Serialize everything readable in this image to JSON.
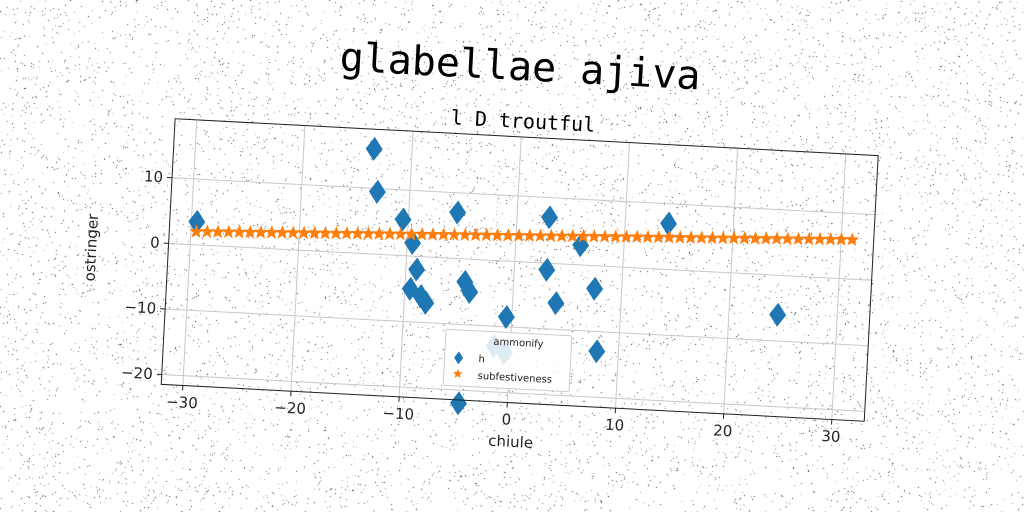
{
  "chart_data": {
    "type": "scatter",
    "title": "glabellae ajiva",
    "subtitle": "l D troutful",
    "xlabel": "chiule",
    "ylabel": "ostringer",
    "xlim": [
      -32,
      33
    ],
    "ylim": [
      -21.5,
      19
    ],
    "xticks": [
      -30,
      -20,
      -10,
      0,
      10,
      20,
      30
    ],
    "yticks": [
      -20,
      -10,
      0,
      10
    ],
    "xtick_labels": [
      "−30",
      "−20",
      "−10",
      "0",
      "10",
      "20",
      "30"
    ],
    "ytick_labels": [
      "−20",
      "−10",
      "0",
      "10"
    ],
    "grid": true,
    "rotation_deg": 3,
    "legend": {
      "placement": "lower-center",
      "title": "ammonify",
      "entries": [
        {
          "label": "h",
          "marker": "diamond",
          "color": "#1f77b4"
        },
        {
          "label": "subfestiveness",
          "marker": "star",
          "color": "#ff7f0e"
        }
      ]
    },
    "series": [
      {
        "name": "h",
        "marker": "diamond",
        "color": "#1f77b4",
        "points": [
          {
            "x": -29.5,
            "y": 3.5
          },
          {
            "x": -13.5,
            "y": 16
          },
          {
            "x": -13,
            "y": 9.5
          },
          {
            "x": -10.5,
            "y": 5.5
          },
          {
            "x": -9.5,
            "y": 2
          },
          {
            "x": -9,
            "y": -2
          },
          {
            "x": -9.5,
            "y": -5
          },
          {
            "x": -8.5,
            "y": -6
          },
          {
            "x": -8,
            "y": -7
          },
          {
            "x": -5.5,
            "y": 7
          },
          {
            "x": -4.5,
            "y": -3.5
          },
          {
            "x": -4,
            "y": -5
          },
          {
            "x": -4.5,
            "y": -22
          },
          {
            "x": -1.5,
            "y": -13
          },
          {
            "x": -0.5,
            "y": -8.5
          },
          {
            "x": -0.5,
            "y": -14
          },
          {
            "x": 3,
            "y": 7
          },
          {
            "x": 3,
            "y": -1
          },
          {
            "x": 4,
            "y": -6
          },
          {
            "x": 6,
            "y": 3
          },
          {
            "x": 7.5,
            "y": -3.5
          },
          {
            "x": 8,
            "y": -13
          },
          {
            "x": 14,
            "y": 7
          },
          {
            "x": 24.5,
            "y": -6
          }
        ]
      },
      {
        "name": "subfestiveness",
        "marker": "star",
        "color": "#ff7f0e",
        "x_start": -29.5,
        "x_end": 31,
        "y_start": 2,
        "y_end": 6,
        "count": 62
      }
    ]
  }
}
